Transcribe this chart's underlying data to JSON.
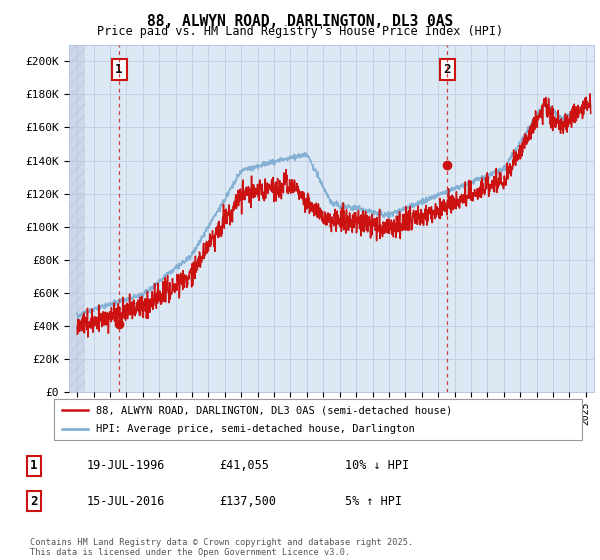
{
  "title": "88, ALWYN ROAD, DARLINGTON, DL3 0AS",
  "subtitle": "Price paid vs. HM Land Registry's House Price Index (HPI)",
  "ylabel_ticks": [
    "£0",
    "£20K",
    "£40K",
    "£60K",
    "£80K",
    "£100K",
    "£120K",
    "£140K",
    "£160K",
    "£180K",
    "£200K"
  ],
  "ytick_values": [
    0,
    20000,
    40000,
    60000,
    80000,
    100000,
    120000,
    140000,
    160000,
    180000,
    200000
  ],
  "ylim": [
    0,
    210000
  ],
  "xlim_start": 1993.5,
  "xlim_end": 2025.5,
  "hatch_end": 1994.5,
  "sale1_x": 1996.55,
  "sale1_y": 41055,
  "sale2_x": 2016.54,
  "sale2_y": 137500,
  "legend_line1": "88, ALWYN ROAD, DARLINGTON, DL3 0AS (semi-detached house)",
  "legend_line2": "HPI: Average price, semi-detached house, Darlington",
  "table_row1": [
    "1",
    "19-JUL-1996",
    "£41,055",
    "10% ↓ HPI"
  ],
  "table_row2": [
    "2",
    "15-JUL-2016",
    "£137,500",
    "5% ↑ HPI"
  ],
  "footer": "Contains HM Land Registry data © Crown copyright and database right 2025.\nThis data is licensed under the Open Government Licence v3.0.",
  "hpi_color": "#7aaad0",
  "price_color": "#cc1111",
  "dashed_line_color": "#cc1111",
  "plot_bg_color": "#dde8f5",
  "grid_color": "#b8c8dc",
  "hatch_color": "#c0cfe0"
}
